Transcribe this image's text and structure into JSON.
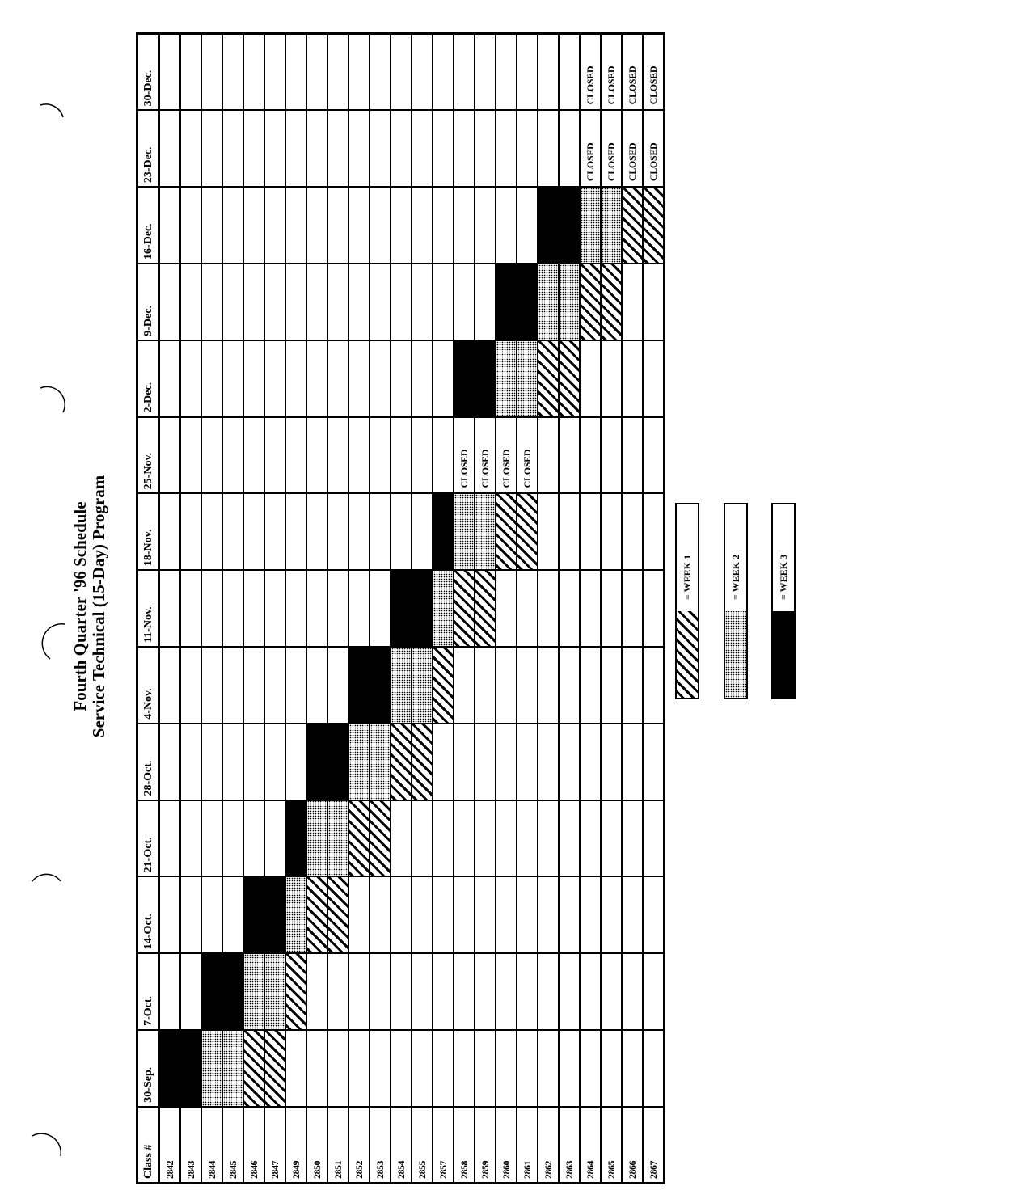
{
  "title": {
    "line1": "Fourth Quarter '96 Schedule",
    "line2": "Service Technical (15-Day) Program"
  },
  "table": {
    "class_header": "Class #",
    "weeks": [
      "30-Sep.",
      "7-Oct.",
      "14-Oct.",
      "21-Oct.",
      "28-Oct.",
      "4-Nov.",
      "11-Nov.",
      "18-Nov.",
      "25-Nov.",
      "2-Dec.",
      "9-Dec.",
      "16-Dec.",
      "23-Dec.",
      "30-Dec."
    ],
    "closed_label": "CLOSED",
    "rows": [
      {
        "class": "2842",
        "cells": [
          3,
          null,
          null,
          null,
          null,
          null,
          null,
          null,
          null,
          null,
          null,
          null,
          null,
          null
        ]
      },
      {
        "class": "2843",
        "cells": [
          3,
          null,
          null,
          null,
          null,
          null,
          null,
          null,
          null,
          null,
          null,
          null,
          null,
          null
        ]
      },
      {
        "class": "2844",
        "cells": [
          2,
          3,
          null,
          null,
          null,
          null,
          null,
          null,
          null,
          null,
          null,
          null,
          null,
          null
        ]
      },
      {
        "class": "2845",
        "cells": [
          2,
          3,
          null,
          null,
          null,
          null,
          null,
          null,
          null,
          null,
          null,
          null,
          null,
          null
        ]
      },
      {
        "class": "2846",
        "cells": [
          1,
          2,
          3,
          null,
          null,
          null,
          null,
          null,
          null,
          null,
          null,
          null,
          null,
          null
        ]
      },
      {
        "class": "2847",
        "cells": [
          1,
          2,
          3,
          null,
          null,
          null,
          null,
          null,
          null,
          null,
          null,
          null,
          null,
          null
        ]
      },
      {
        "class": "2849",
        "cells": [
          null,
          1,
          2,
          3,
          null,
          null,
          null,
          null,
          null,
          null,
          null,
          null,
          null,
          null
        ]
      },
      {
        "class": "2850",
        "cells": [
          null,
          null,
          1,
          2,
          3,
          null,
          null,
          null,
          null,
          null,
          null,
          null,
          null,
          null
        ]
      },
      {
        "class": "2851",
        "cells": [
          null,
          null,
          1,
          2,
          3,
          null,
          null,
          null,
          null,
          null,
          null,
          null,
          null,
          null
        ]
      },
      {
        "class": "2852",
        "cells": [
          null,
          null,
          null,
          1,
          2,
          3,
          null,
          null,
          null,
          null,
          null,
          null,
          null,
          null
        ]
      },
      {
        "class": "2853",
        "cells": [
          null,
          null,
          null,
          1,
          2,
          3,
          null,
          null,
          null,
          null,
          null,
          null,
          null,
          null
        ]
      },
      {
        "class": "2854",
        "cells": [
          null,
          null,
          null,
          null,
          1,
          2,
          3,
          null,
          null,
          null,
          null,
          null,
          null,
          null
        ]
      },
      {
        "class": "2855",
        "cells": [
          null,
          null,
          null,
          null,
          1,
          2,
          3,
          null,
          null,
          null,
          null,
          null,
          null,
          null
        ]
      },
      {
        "class": "2857",
        "cells": [
          null,
          null,
          null,
          null,
          null,
          1,
          2,
          3,
          null,
          null,
          null,
          null,
          null,
          null
        ]
      },
      {
        "class": "2858",
        "cells": [
          null,
          null,
          null,
          null,
          null,
          null,
          1,
          2,
          "CLOSED",
          3,
          null,
          null,
          null,
          null
        ]
      },
      {
        "class": "2859",
        "cells": [
          null,
          null,
          null,
          null,
          null,
          null,
          1,
          2,
          "CLOSED",
          3,
          null,
          null,
          null,
          null
        ]
      },
      {
        "class": "2860",
        "cells": [
          null,
          null,
          null,
          null,
          null,
          null,
          null,
          1,
          "CLOSED",
          2,
          3,
          null,
          null,
          null
        ]
      },
      {
        "class": "2861",
        "cells": [
          null,
          null,
          null,
          null,
          null,
          null,
          null,
          1,
          "CLOSED",
          2,
          3,
          null,
          null,
          null
        ]
      },
      {
        "class": "2862",
        "cells": [
          null,
          null,
          null,
          null,
          null,
          null,
          null,
          null,
          null,
          1,
          2,
          3,
          null,
          null
        ]
      },
      {
        "class": "2863",
        "cells": [
          null,
          null,
          null,
          null,
          null,
          null,
          null,
          null,
          null,
          1,
          2,
          3,
          null,
          null
        ]
      },
      {
        "class": "2864",
        "cells": [
          null,
          null,
          null,
          null,
          null,
          null,
          null,
          null,
          null,
          null,
          1,
          2,
          "CLOSED",
          "CLOSED"
        ]
      },
      {
        "class": "2865",
        "cells": [
          null,
          null,
          null,
          null,
          null,
          null,
          null,
          null,
          null,
          null,
          1,
          2,
          "CLOSED",
          "CLOSED"
        ]
      },
      {
        "class": "2866",
        "cells": [
          null,
          null,
          null,
          null,
          null,
          null,
          null,
          null,
          null,
          null,
          null,
          1,
          "CLOSED",
          "CLOSED"
        ]
      },
      {
        "class": "2867",
        "cells": [
          null,
          null,
          null,
          null,
          null,
          null,
          null,
          null,
          null,
          null,
          null,
          1,
          "CLOSED",
          "CLOSED"
        ]
      }
    ]
  },
  "legend": [
    {
      "pattern": "hatched",
      "label": "= WEEK 1"
    },
    {
      "pattern": "dotted-gray",
      "label": "= WEEK 2"
    },
    {
      "pattern": "solid-black",
      "label": "= WEEK 3"
    }
  ]
}
